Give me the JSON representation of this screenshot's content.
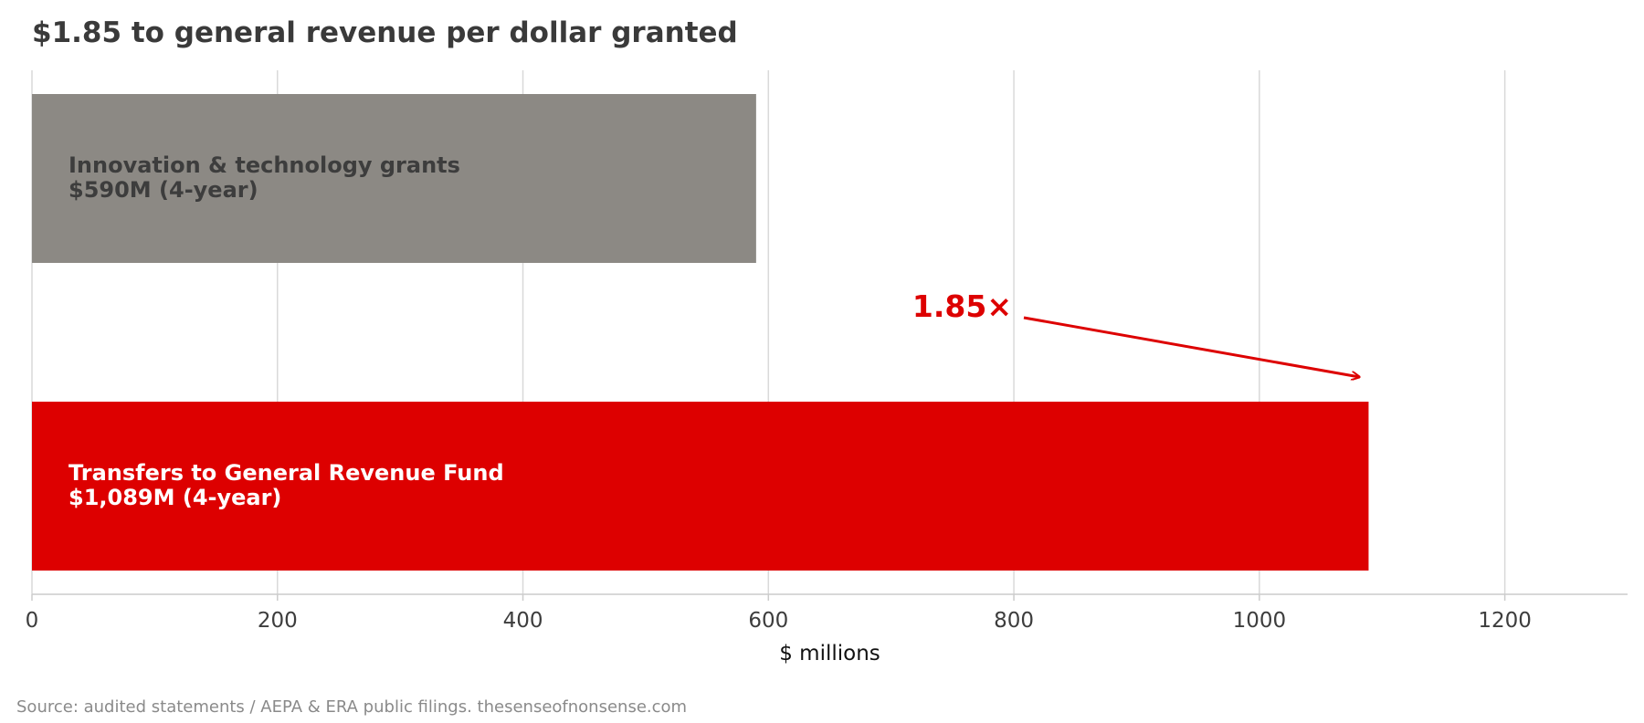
{
  "chart_data": {
    "type": "bar",
    "orientation": "horizontal",
    "title": "$1.85 to general revenue per dollar granted",
    "xlabel": "$ millions",
    "ylabel": "",
    "xlim": [
      0,
      1300
    ],
    "xticks": [
      0,
      200,
      400,
      600,
      800,
      1000,
      1200
    ],
    "grid": "vertical",
    "bars": [
      {
        "name": "Innovation & technology grants",
        "value": 590,
        "label_line1": "Innovation & technology grants",
        "label_line2": "$590M (4-year)",
        "color": "#8c8984",
        "label_color": "#3d3d3d"
      },
      {
        "name": "Transfers to General Revenue Fund",
        "value": 1089,
        "label_line1": "Transfers to General Revenue Fund",
        "label_line2": "$1,089M (4-year)",
        "color": "#dd0000",
        "label_color": "#ffffff"
      }
    ],
    "annotation": {
      "text": "1.85×",
      "color": "#dd0000",
      "points_to_value": 1089
    },
    "source": "Source: audited statements / AEPA & ERA public filings. thesenseofnonsense.com"
  }
}
